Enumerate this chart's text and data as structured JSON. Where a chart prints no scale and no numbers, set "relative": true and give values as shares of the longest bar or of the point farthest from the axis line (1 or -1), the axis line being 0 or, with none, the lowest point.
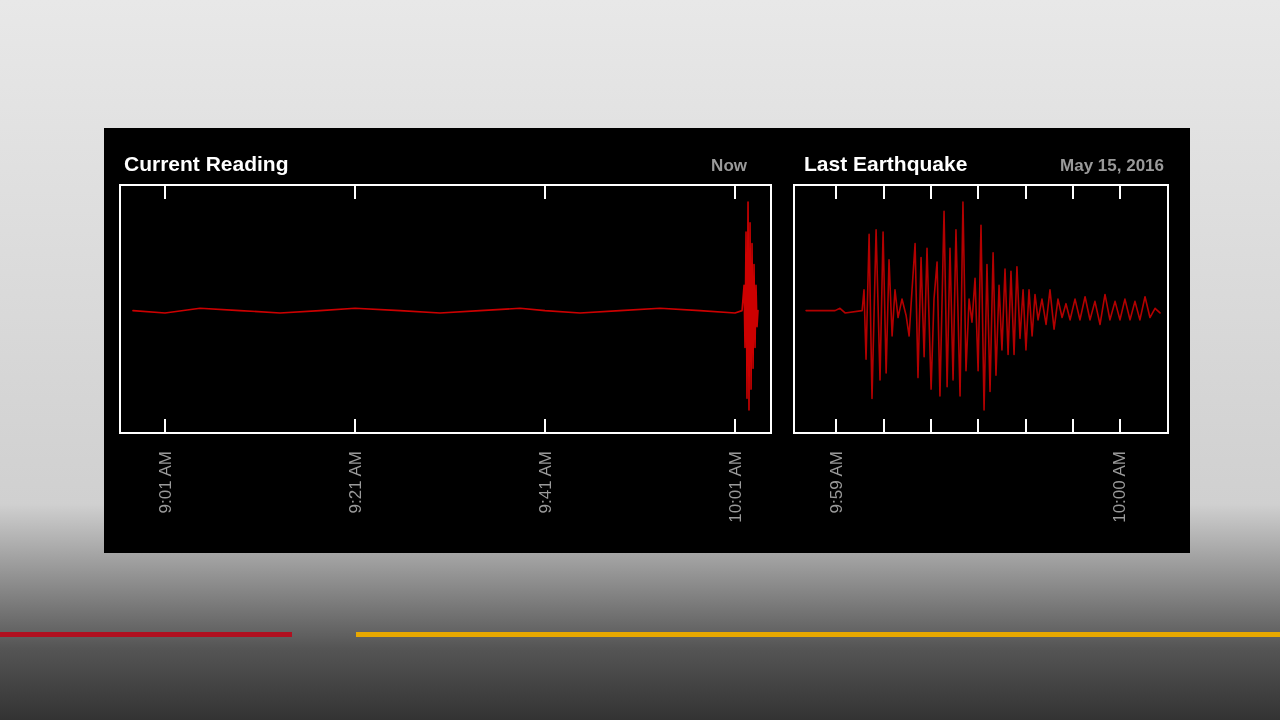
{
  "chart_data": [
    {
      "type": "line",
      "title": "Current Reading",
      "subtitle": "Now",
      "relative": true,
      "marker": "none",
      "xlim": [
        8.9377,
        10.0798
      ],
      "xticks": [
        {
          "value": 9.01667,
          "label": "9:01 AM"
        },
        {
          "value": 9.35,
          "label": "9:21 AM"
        },
        {
          "value": 9.68333,
          "label": "9:41 AM"
        },
        {
          "value": 10.01667,
          "label": "10:01 AM"
        }
      ],
      "series": [
        {
          "color": "#cc0000",
          "x": [
            8.9605,
            9.0167,
            9.0781,
            9.1483,
            9.2184,
            9.2886,
            9.35,
            9.429,
            9.4991,
            9.5693,
            9.6395,
            9.6833,
            9.7448,
            9.8149,
            9.8851,
            9.9553,
            10.0167,
            10.029,
            10.0325,
            10.0342,
            10.036,
            10.0377,
            10.0395,
            10.0412,
            10.043,
            10.0448,
            10.0465,
            10.0483,
            10.05,
            10.0518,
            10.0535,
            10.0553,
            10.057
          ],
          "values": [
            0.53,
            0.52,
            0.54,
            0.53,
            0.52,
            0.53,
            0.54,
            0.53,
            0.52,
            0.53,
            0.54,
            0.53,
            0.52,
            0.53,
            0.54,
            0.53,
            0.52,
            0.53,
            0.64,
            0.37,
            0.87,
            0.15,
            1,
            0.1,
            0.91,
            0.19,
            0.82,
            0.28,
            0.73,
            0.37,
            0.64,
            0.46,
            0.53
          ]
        }
      ]
    },
    {
      "type": "line",
      "title": "Last Earthquake",
      "subtitle": "May 15, 2016",
      "relative": true,
      "marker": "none",
      "xlim": [
        9.98086,
        10.00282
      ],
      "xticks": [
        {
          "value": 9.98333,
          "label": "9:59 AM"
        },
        {
          "value": 9.98611,
          "label": null
        },
        {
          "value": 9.98889,
          "label": null
        },
        {
          "value": 9.99167,
          "label": null
        },
        {
          "value": 9.99444,
          "label": null
        },
        {
          "value": 9.99722,
          "label": null
        },
        {
          "value": 10.0,
          "label": "10:00 AM"
        }
      ],
      "series": [
        {
          "color": "#b30000",
          "x": [
            9.98157,
            9.98327,
            9.98356,
            9.98386,
            9.98486,
            9.98497,
            9.98509,
            9.98527,
            9.98544,
            9.98568,
            9.98591,
            9.98609,
            9.98627,
            9.98644,
            9.98662,
            9.98679,
            9.98697,
            9.9872,
            9.98744,
            9.98762,
            9.98779,
            9.98797,
            9.98814,
            9.98832,
            9.9885,
            9.98867,
            9.98891,
            9.98908,
            9.98926,
            9.98943,
            9.98967,
            9.98985,
            9.99002,
            9.9902,
            9.99037,
            9.99061,
            9.99078,
            9.99096,
            9.99114,
            9.99131,
            9.99149,
            9.99167,
            9.99184,
            9.99202,
            9.99219,
            9.99237,
            9.99255,
            9.99272,
            9.9929,
            9.99307,
            9.99325,
            9.99343,
            9.9936,
            9.99378,
            9.99395,
            9.99413,
            9.99431,
            9.99448,
            9.99466,
            9.99484,
            9.99501,
            9.99519,
            9.99542,
            9.99566,
            9.99589,
            9.99613,
            9.99636,
            9.9966,
            9.99683,
            9.99707,
            9.99736,
            9.99765,
            9.99795,
            9.99824,
            9.99853,
            9.99883,
            9.99912,
            9.99941,
            9.99971,
            10.0,
            10.00029,
            10.00059,
            10.00088,
            10.00117,
            10.00147,
            10.00176,
            10.00206,
            10.00235
          ],
          "values": [
            0.53,
            0.53,
            0.54,
            0.52,
            0.53,
            0.62,
            0.32,
            0.86,
            0.15,
            0.88,
            0.23,
            0.87,
            0.26,
            0.75,
            0.42,
            0.62,
            0.5,
            0.58,
            0.51,
            0.42,
            0.62,
            0.82,
            0.24,
            0.76,
            0.33,
            0.8,
            0.19,
            0.58,
            0.74,
            0.16,
            0.96,
            0.2,
            0.8,
            0.23,
            0.88,
            0.16,
            1,
            0.27,
            0.58,
            0.48,
            0.67,
            0.27,
            0.9,
            0.1,
            0.73,
            0.18,
            0.78,
            0.25,
            0.64,
            0.36,
            0.71,
            0.34,
            0.7,
            0.34,
            0.72,
            0.41,
            0.62,
            0.36,
            0.62,
            0.42,
            0.6,
            0.49,
            0.58,
            0.47,
            0.62,
            0.45,
            0.58,
            0.5,
            0.56,
            0.49,
            0.58,
            0.49,
            0.59,
            0.49,
            0.57,
            0.47,
            0.6,
            0.49,
            0.57,
            0.49,
            0.58,
            0.49,
            0.57,
            0.49,
            0.59,
            0.5,
            0.54,
            0.52
          ]
        }
      ]
    }
  ]
}
